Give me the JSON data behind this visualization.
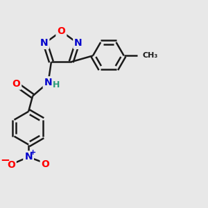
{
  "bg_color": "#e8e8e8",
  "bond_color": "#1a1a1a",
  "atom_colors": {
    "O": "#ff0000",
    "N": "#0000cc",
    "C": "#1a1a1a",
    "H": "#2a9a7a"
  },
  "bond_width": 1.8,
  "figsize": [
    3.0,
    3.0
  ],
  "dpi": 100
}
